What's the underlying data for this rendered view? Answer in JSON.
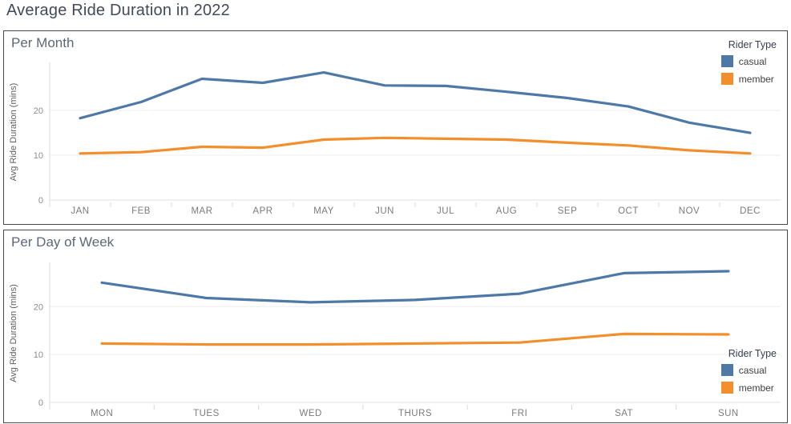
{
  "dashboard_title": "Average Ride Duration in 2022",
  "colors": {
    "casual": "#4e79a7",
    "member": "#f28e2b"
  },
  "legend": {
    "title": "Rider Type",
    "items": [
      {
        "label": "casual",
        "color": "#4e79a7"
      },
      {
        "label": "member",
        "color": "#f28e2b"
      }
    ]
  },
  "chart_data": [
    {
      "type": "line",
      "title": "Per Month",
      "ylabel": "Avg Ride Duration (mins)",
      "xlabel": "",
      "categories": [
        "JAN",
        "FEB",
        "MAR",
        "APR",
        "MAY",
        "JUN",
        "JUL",
        "AUG",
        "SEP",
        "OCT",
        "NOV",
        "DEC"
      ],
      "series": [
        {
          "name": "casual",
          "color": "#4e79a7",
          "values": [
            18.3,
            21.9,
            27.1,
            26.2,
            28.5,
            25.6,
            25.5,
            24.2,
            22.8,
            20.9,
            17.3,
            15.0
          ]
        },
        {
          "name": "member",
          "color": "#f28e2b",
          "values": [
            10.4,
            10.7,
            11.9,
            11.7,
            13.5,
            13.9,
            13.7,
            13.5,
            12.8,
            12.2,
            11.1,
            10.4
          ]
        }
      ],
      "yticks": [
        0,
        10,
        20
      ],
      "ylim": [
        0,
        30.4
      ],
      "grid": true,
      "legend_position": "top-right"
    },
    {
      "type": "line",
      "title": "Per Day of Week",
      "ylabel": "Avg Ride Duration (mins)",
      "xlabel": "",
      "categories": [
        "MON",
        "TUES",
        "WED",
        "THURS",
        "FRI",
        "SAT",
        "SUN"
      ],
      "series": [
        {
          "name": "casual",
          "color": "#4e79a7",
          "values": [
            25.0,
            21.8,
            20.9,
            21.4,
            22.7,
            27.0,
            27.4
          ]
        },
        {
          "name": "member",
          "color": "#f28e2b",
          "values": [
            12.3,
            12.1,
            12.1,
            12.3,
            12.5,
            14.3,
            14.2
          ]
        }
      ],
      "yticks": [
        0,
        10,
        20
      ],
      "ylim": [
        0,
        28.9
      ],
      "grid": true,
      "legend_position": "bottom-right"
    }
  ]
}
